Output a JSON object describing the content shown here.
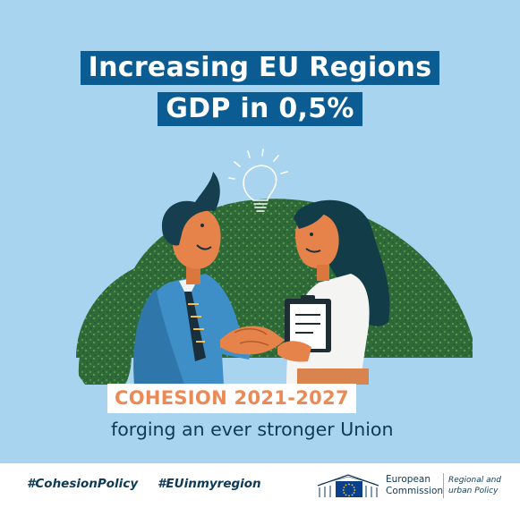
{
  "headline": {
    "line1": "Increasing EU Regions",
    "line2": "GDP in 0,5%"
  },
  "campaign": {
    "label": "COHESION 2021-2027",
    "tagline": "forging an ever stronger Union"
  },
  "illustration": {
    "icon": "lightbulb-icon",
    "scene": "handshake-illustration"
  },
  "footer": {
    "hashtags": [
      "#CohesionPolicy",
      "#EUinmyregion"
    ],
    "org_line1": "European",
    "org_line2": "Commission",
    "dept_line1": "Regional and",
    "dept_line2": "urban Policy",
    "logo_icon": "eu-commission-logo-icon"
  },
  "colors": {
    "background": "#a8d4ef",
    "headline_bg": "#0b5c92",
    "accent_orange": "#ec8a55",
    "text_dark": "#0f3a56",
    "hill_green": "#2e6a38"
  }
}
